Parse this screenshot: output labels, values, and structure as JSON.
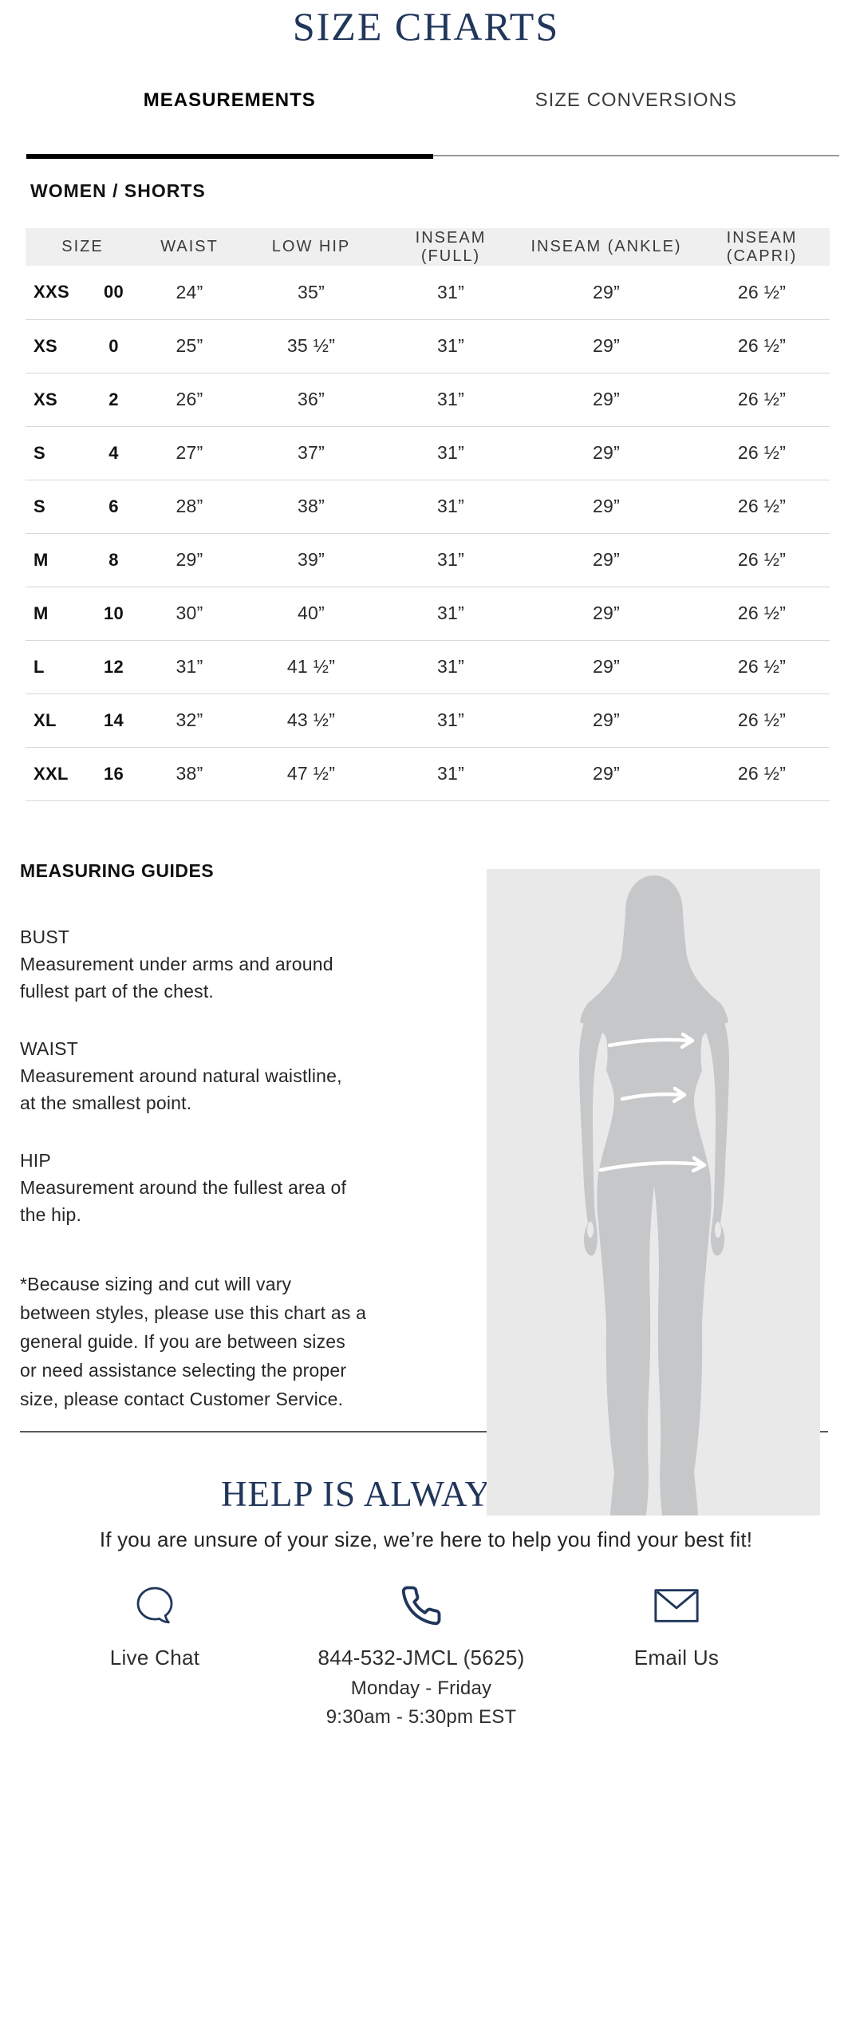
{
  "page": {
    "title": "SIZE CHARTS"
  },
  "tabs": [
    {
      "label": "MEASUREMENTS",
      "active": true
    },
    {
      "label": "SIZE CONVERSIONS",
      "active": false
    }
  ],
  "section": {
    "heading": "WOMEN / SHORTS"
  },
  "table": {
    "columns": [
      "SIZE",
      "WAIST",
      "LOW HIP",
      "INSEAM (FULL)",
      "INSEAM (ANKLE)",
      "INSEAM (CAPRI)"
    ],
    "rows": [
      [
        "XXS",
        "00",
        "24”",
        "35”",
        "31”",
        "29”",
        "26 ½”"
      ],
      [
        "XS",
        "0",
        "25”",
        "35 ½”",
        "31”",
        "29”",
        "26 ½”"
      ],
      [
        "XS",
        "2",
        "26”",
        "36”",
        "31”",
        "29”",
        "26 ½”"
      ],
      [
        "S",
        "4",
        "27”",
        "37”",
        "31”",
        "29”",
        "26 ½”"
      ],
      [
        "S",
        "6",
        "28”",
        "38”",
        "31”",
        "29”",
        "26 ½”"
      ],
      [
        "M",
        "8",
        "29”",
        "39”",
        "31”",
        "29”",
        "26 ½”"
      ],
      [
        "M",
        "10",
        "30”",
        "40”",
        "31”",
        "29”",
        "26 ½”"
      ],
      [
        "L",
        "12",
        "31”",
        "41 ½”",
        "31”",
        "29”",
        "26 ½”"
      ],
      [
        "XL",
        "14",
        "32”",
        "43 ½”",
        "31”",
        "29”",
        "26 ½”"
      ],
      [
        "XXL",
        "16",
        "38”",
        "47 ½”",
        "31”",
        "29”",
        "26 ½”"
      ]
    ]
  },
  "guides": {
    "heading": "MEASURING GUIDES",
    "items": [
      {
        "label": "BUST",
        "lines": [
          "Measurement under arms and around",
          "fullest part of the chest."
        ]
      },
      {
        "label": "WAIST",
        "lines": [
          "Measurement around natural waistline,",
          "at the smallest point."
        ]
      },
      {
        "label": "HIP",
        "lines": [
          "Measurement around the fullest area of",
          "the hip."
        ]
      }
    ],
    "disclaimer_lines": [
      "*Because sizing and cut will vary",
      "between styles, please use this chart as a",
      "general guide. If you are between sizes",
      "or need assistance selecting the proper",
      "size, please contact Customer Service."
    ]
  },
  "help": {
    "heading_visible": "HELP IS ALWAY",
    "subtext": "If you are unsure of your size, we’re here to help you find your best fit!"
  },
  "contact": {
    "chat": {
      "label": "Live Chat"
    },
    "phone": {
      "label": "844-532-JMCL (5625)",
      "schedule_line1": "Monday - Friday",
      "schedule_line2": "9:30am - 5:30pm EST"
    },
    "email": {
      "label": "Email Us"
    }
  },
  "figure": {
    "name": "female-body-measurement-silhouette"
  },
  "colors": {
    "navy": "#21365b",
    "table_header_bg": "#f0eff0",
    "figure_bg": "#e9e9ea",
    "figure_body": "#c6c7c9"
  }
}
